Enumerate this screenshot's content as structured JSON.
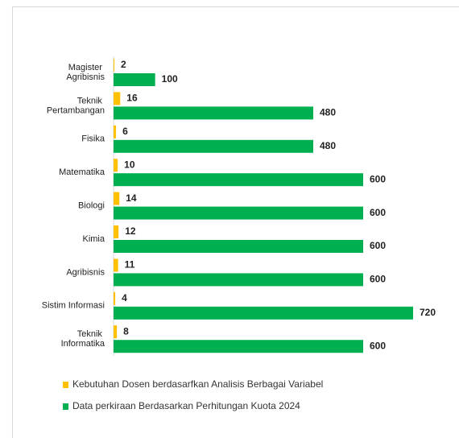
{
  "chart_data": {
    "type": "bar",
    "orientation": "horizontal",
    "categories": [
      "Magister Agribisnis",
      "Teknik Pertambangan",
      "Fisika",
      "Matematika",
      "Biologi",
      "Kimia",
      "Agribisnis",
      "Sistim Informasi",
      "Teknik Informatika"
    ],
    "series": [
      {
        "name": "Kebutuhan Dosen berdasarfkan Analisis Berbagai Variabel",
        "color": "#ffc000",
        "values": [
          2,
          16,
          6,
          10,
          14,
          12,
          11,
          4,
          8
        ]
      },
      {
        "name": "Data perkiraan Berdasarkan Perhitungan Kuota 2024",
        "color": "#00b050",
        "values": [
          100,
          480,
          480,
          600,
          600,
          600,
          600,
          720,
          600
        ]
      }
    ],
    "legend": "bottom-left"
  }
}
